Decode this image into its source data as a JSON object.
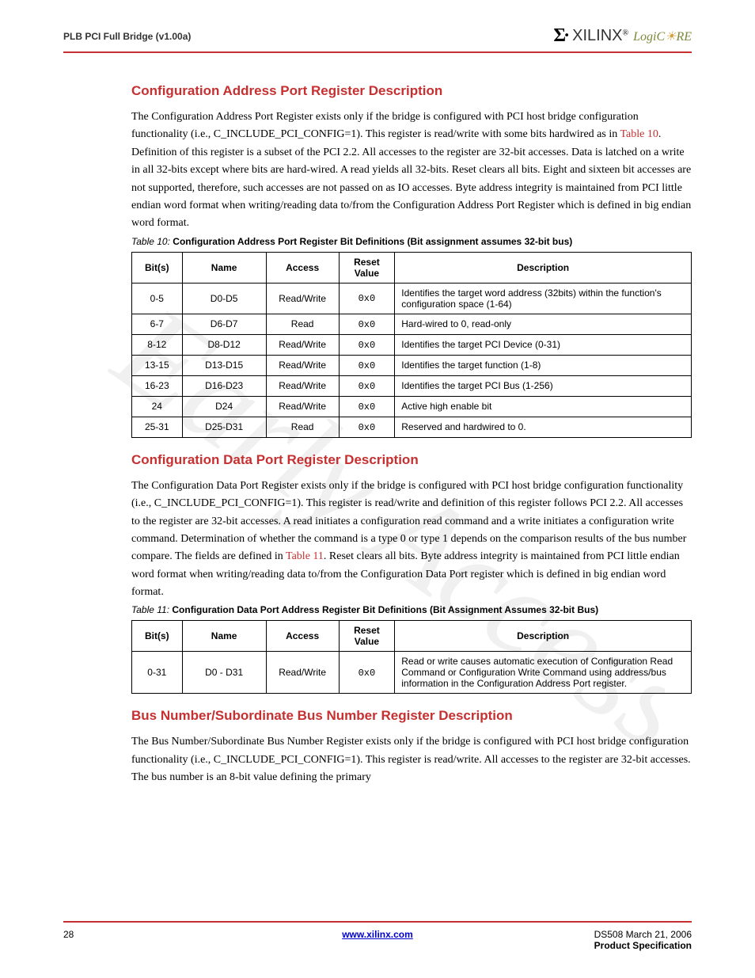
{
  "header": {
    "title": "PLB PCI Full Bridge (v1.00a)",
    "logo_brand": "XILINX",
    "logo_tag": "LogiC",
    "logo_tag2": "RE"
  },
  "sections": {
    "s1": {
      "heading": "Configuration Address Port Register Description",
      "para_a": "The Configuration Address Port Register exists only if the bridge is configured with PCI host bridge configuration functionality (i.e., C_INCLUDE_PCI_CONFIG=1). This register is read/write with some bits hardwired as in ",
      "para_link": "Table 10",
      "para_b": ". Definition of this register is a subset of the PCI 2.2. All accesses to the register are 32-bit accesses. Data is latched on a write in all 32-bits except where bits are hard-wired. A read yields all 32-bits. Reset clears all bits. Eight and sixteen bit accesses are not supported, therefore, such accesses are not passed on as IO accesses. Byte address integrity is maintained from PCI little endian word format when writing/reading data to/from the Configuration Address Port Register which is defined in big endian word format."
    },
    "s2": {
      "heading": "Configuration Data Port Register Description",
      "para_a": "The Configuration Data Port Register exists only if the bridge is configured with PCI host bridge configuration functionality (i.e., C_INCLUDE_PCI_CONFIG=1). This register is read/write and definition of this register follows PCI 2.2. All accesses to the register are 32-bit accesses. A read initiates a configuration read command and a write initiates a configuration write command. Determination of whether the command is a type 0 or type 1 depends on the comparison results of the bus number compare. The fields are defined in ",
      "para_link": "Table 11",
      "para_b": ". Reset clears all bits. Byte address integrity is maintained from PCI little endian word format when writing/reading data to/from the Configuration Data Port register which is defined in big endian word format."
    },
    "s3": {
      "heading": "Bus Number/Subordinate Bus Number Register Description",
      "para": "The Bus Number/Subordinate Bus Number Register exists only if the bridge is configured with PCI host bridge configuration functionality (i.e., C_INCLUDE_PCI_CONFIG=1). This register is read/write. All accesses to the register are 32-bit accesses. The bus number is an 8-bit value defining the primary"
    }
  },
  "table10": {
    "caption_prefix": "Table  10:",
    "caption": "Configuration Address Port Register Bit Definitions (Bit assignment assumes 32-bit bus)",
    "headers": [
      "Bit(s)",
      "Name",
      "Access",
      "Reset Value",
      "Description"
    ],
    "rows": [
      [
        "0-5",
        "D0-D5",
        "Read/Write",
        "0x0",
        "Identifies the target word address (32bits) within the function's configuration space (1-64)"
      ],
      [
        "6-7",
        "D6-D7",
        "Read",
        "0x0",
        "Hard-wired to 0, read-only"
      ],
      [
        "8-12",
        "D8-D12",
        "Read/Write",
        "0x0",
        "Identifies the target PCI Device (0-31)"
      ],
      [
        "13-15",
        "D13-D15",
        "Read/Write",
        "0x0",
        "Identifies the target function (1-8)"
      ],
      [
        "16-23",
        "D16-D23",
        "Read/Write",
        "0x0",
        "Identifies the target PCI Bus (1-256)"
      ],
      [
        "24",
        "D24",
        "Read/Write",
        "0x0",
        "Active high enable bit"
      ],
      [
        "25-31",
        "D25-D31",
        "Read",
        "0x0",
        "Reserved and hardwired to 0."
      ]
    ]
  },
  "table11": {
    "caption_prefix": "Table  11:",
    "caption": "Configuration Data Port Address Register Bit Definitions (Bit Assignment Assumes 32-bit Bus)",
    "headers": [
      "Bit(s)",
      "Name",
      "Access",
      "Reset Value",
      "Description"
    ],
    "rows": [
      [
        "0-31",
        "D0 - D31",
        "Read/Write",
        "0x0",
        "Read or write causes automatic execution of Configuration Read Command or Configuration Write Command using address/bus information in the Configuration Address Port register."
      ]
    ]
  },
  "footer": {
    "page": "28",
    "url": "www.xilinx.com",
    "doc": "DS508 March 21, 2006",
    "spec": "Product Specification"
  },
  "colors": {
    "accent": "#c63030",
    "link": "#0000cc"
  }
}
